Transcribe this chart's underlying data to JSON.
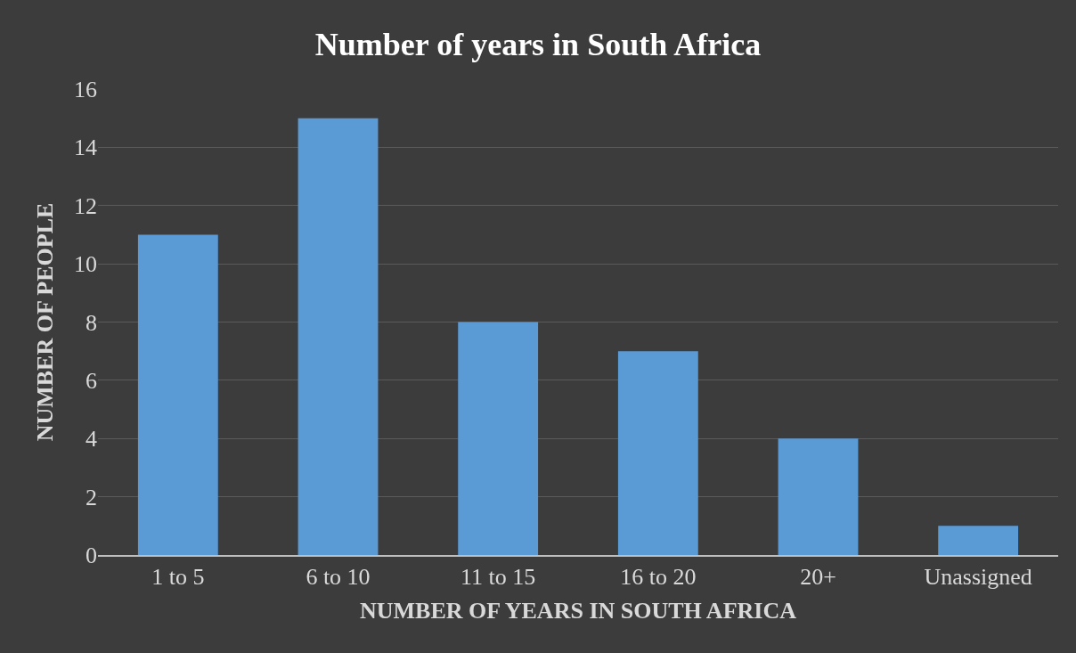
{
  "chart_data": {
    "type": "bar",
    "title": "Number of years in South Africa",
    "xlabel": "NUMBER OF YEARS IN SOUTH AFRICA",
    "ylabel": "NUMBER OF PEOPLE",
    "categories": [
      "1 to 5",
      "6 to 10",
      "11 to 15",
      "16 to 20",
      "20+",
      "Unassigned"
    ],
    "values": [
      11,
      15,
      8,
      7,
      4,
      1
    ],
    "color": "#5b9bd5",
    "ylim": [
      0,
      16
    ],
    "yticks": [
      0,
      2,
      4,
      6,
      8,
      10,
      12,
      14,
      16
    ],
    "grid": "y"
  }
}
